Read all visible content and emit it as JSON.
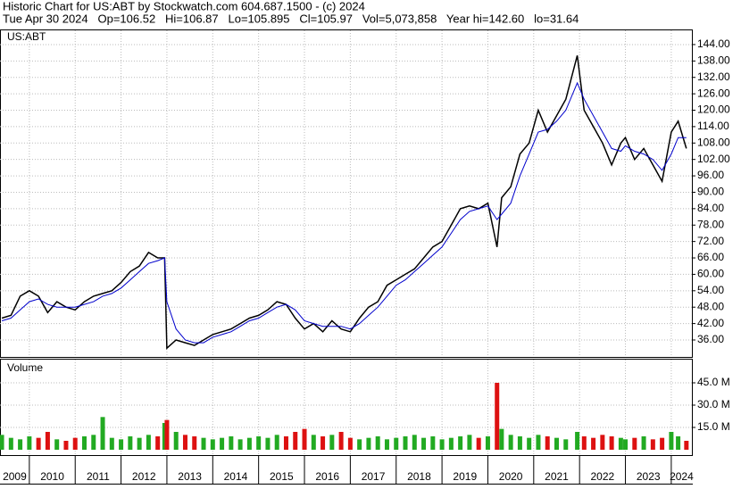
{
  "header": {
    "title": "Historic Chart for US:ABT by Stockwatch.com 604.687.1500 - (c) 2024",
    "quote": "Tue Apr 30 2024   Op=106.52   Hi=106.87   Lo=105.895   Cl=105.97   Vol=5,073,858   Year hi=142.60   lo=31.64"
  },
  "chart_data": [
    {
      "type": "line",
      "label": "US:ABT",
      "x": [
        2009.4,
        2009.6,
        2009.8,
        2010.0,
        2010.2,
        2010.4,
        2010.6,
        2010.8,
        2011.0,
        2011.2,
        2011.4,
        2011.6,
        2011.8,
        2012.0,
        2012.2,
        2012.4,
        2012.6,
        2012.8,
        2012.95,
        2013.0,
        2013.2,
        2013.4,
        2013.6,
        2013.8,
        2014.0,
        2014.2,
        2014.4,
        2014.6,
        2014.8,
        2015.0,
        2015.2,
        2015.4,
        2015.6,
        2015.8,
        2016.0,
        2016.2,
        2016.4,
        2016.6,
        2016.8,
        2017.0,
        2017.2,
        2017.4,
        2017.6,
        2017.8,
        2018.0,
        2018.2,
        2018.4,
        2018.6,
        2018.8,
        2019.0,
        2019.2,
        2019.4,
        2019.6,
        2019.8,
        2020.0,
        2020.2,
        2020.3,
        2020.5,
        2020.7,
        2020.9,
        2021.1,
        2021.3,
        2021.5,
        2021.7,
        2021.95,
        2022.1,
        2022.3,
        2022.5,
        2022.7,
        2022.9,
        2023.0,
        2023.2,
        2023.4,
        2023.6,
        2023.8,
        2024.0,
        2024.15,
        2024.33
      ],
      "series": [
        {
          "color": "#000000",
          "values": [
            44,
            45,
            52,
            54,
            52,
            46,
            50,
            48,
            47,
            50,
            52,
            53,
            54,
            57,
            61,
            63,
            68,
            66,
            66,
            33,
            36,
            35,
            34,
            36,
            38,
            39,
            40,
            42,
            44,
            45,
            47,
            50,
            49,
            44,
            40,
            42,
            39,
            43,
            40,
            39,
            44,
            48,
            50,
            56,
            58,
            60,
            62,
            66,
            70,
            72,
            78,
            84,
            85,
            84,
            86,
            70,
            88,
            92,
            104,
            108,
            120,
            112,
            118,
            124,
            140,
            120,
            114,
            108,
            100,
            108,
            110,
            102,
            106,
            100,
            94,
            112,
            116,
            106
          ]
        },
        {
          "color": "#0000cc",
          "values": [
            43,
            44,
            47,
            50,
            51,
            49,
            48,
            48,
            48,
            49,
            50,
            52,
            53,
            55,
            58,
            61,
            64,
            65,
            66,
            50,
            40,
            36,
            35,
            35,
            37,
            38,
            39,
            41,
            43,
            44,
            46,
            48,
            49,
            47,
            43,
            42,
            41,
            41,
            41,
            40,
            42,
            45,
            48,
            52,
            56,
            58,
            61,
            64,
            67,
            70,
            75,
            80,
            83,
            84,
            85,
            80,
            82,
            86,
            96,
            104,
            112,
            113,
            116,
            120,
            130,
            124,
            118,
            112,
            106,
            105,
            107,
            105,
            104,
            102,
            98,
            104,
            110,
            110
          ]
        }
      ],
      "xlim": [
        2009.36,
        2024.45
      ],
      "xticks": [
        {
          "value": 2009,
          "label": "2009"
        },
        {
          "value": 2010,
          "label": "2010"
        },
        {
          "value": 2011,
          "label": "2011"
        },
        {
          "value": 2012,
          "label": "2012"
        },
        {
          "value": 2013,
          "label": "2013"
        },
        {
          "value": 2014,
          "label": "2014"
        },
        {
          "value": 2015,
          "label": "2015"
        },
        {
          "value": 2016,
          "label": "2016"
        },
        {
          "value": 2017,
          "label": "2017"
        },
        {
          "value": 2018,
          "label": "2018"
        },
        {
          "value": 2019,
          "label": "2019"
        },
        {
          "value": 2020,
          "label": "2020"
        },
        {
          "value": 2021,
          "label": "2021"
        },
        {
          "value": 2022,
          "label": "2022"
        },
        {
          "value": 2023,
          "label": "2023"
        },
        {
          "value": 2024,
          "label": "2024"
        }
      ],
      "ylim": [
        29.8,
        149.2
      ],
      "yticks": [
        {
          "value": 36,
          "label": "36.00"
        },
        {
          "value": 42,
          "label": "42.00"
        },
        {
          "value": 48,
          "label": "48.00"
        },
        {
          "value": 54,
          "label": "54.00"
        },
        {
          "value": 60,
          "label": "60.00"
        },
        {
          "value": 66,
          "label": "66.00"
        },
        {
          "value": 72,
          "label": "72.00"
        },
        {
          "value": 78,
          "label": "78.00"
        },
        {
          "value": 84,
          "label": "84.00"
        },
        {
          "value": 90,
          "label": "90.00"
        },
        {
          "value": 96,
          "label": "96.00"
        },
        {
          "value": 102,
          "label": "102.00"
        },
        {
          "value": 108,
          "label": "108.00"
        },
        {
          "value": 114,
          "label": "114.00"
        },
        {
          "value": 120,
          "label": "120.00"
        },
        {
          "value": 126,
          "label": "126.00"
        },
        {
          "value": 132,
          "label": "132.00"
        },
        {
          "value": 138,
          "label": "138.00"
        },
        {
          "value": 144,
          "label": "144.00"
        }
      ],
      "grid": true
    },
    {
      "type": "bar",
      "label": "Volume",
      "x": [
        2009.4,
        2009.6,
        2009.8,
        2010.0,
        2010.2,
        2010.4,
        2010.6,
        2010.8,
        2011.0,
        2011.2,
        2011.4,
        2011.6,
        2011.8,
        2012.0,
        2012.2,
        2012.4,
        2012.6,
        2012.8,
        2012.95,
        2013.0,
        2013.2,
        2013.4,
        2013.6,
        2013.8,
        2014.0,
        2014.2,
        2014.4,
        2014.6,
        2014.8,
        2015.0,
        2015.2,
        2015.4,
        2015.6,
        2015.8,
        2016.0,
        2016.2,
        2016.4,
        2016.6,
        2016.8,
        2017.0,
        2017.2,
        2017.4,
        2017.6,
        2017.8,
        2018.0,
        2018.2,
        2018.4,
        2018.6,
        2018.8,
        2019.0,
        2019.2,
        2019.4,
        2019.6,
        2019.8,
        2020.0,
        2020.2,
        2020.3,
        2020.5,
        2020.7,
        2020.9,
        2021.1,
        2021.3,
        2021.5,
        2021.7,
        2021.95,
        2022.1,
        2022.3,
        2022.5,
        2022.7,
        2022.9,
        2023.0,
        2023.2,
        2023.4,
        2023.6,
        2023.8,
        2024.0,
        2024.15,
        2024.33
      ],
      "values": [
        10,
        8,
        7,
        9,
        8,
        12,
        7,
        6,
        8,
        9,
        10,
        22,
        8,
        7,
        9,
        8,
        10,
        9,
        18,
        20,
        12,
        10,
        9,
        8,
        7,
        8,
        9,
        7,
        8,
        9,
        8,
        10,
        9,
        12,
        14,
        10,
        9,
        10,
        12,
        8,
        7,
        8,
        9,
        7,
        8,
        9,
        10,
        8,
        9,
        7,
        8,
        9,
        10,
        8,
        9,
        45,
        14,
        10,
        9,
        8,
        10,
        9,
        8,
        7,
        12,
        9,
        8,
        10,
        9,
        8,
        7,
        8,
        9,
        7,
        8,
        12,
        9,
        6
      ],
      "up_color": "#22aa22",
      "down_color": "#dd1111",
      "ylim": [
        -3.6,
        60.6
      ],
      "yticks": [
        {
          "value": 15,
          "label": "15.0 M"
        },
        {
          "value": 30,
          "label": "30.0 M"
        },
        {
          "value": 45,
          "label": "45.0 M"
        }
      ],
      "grid": true
    }
  ]
}
